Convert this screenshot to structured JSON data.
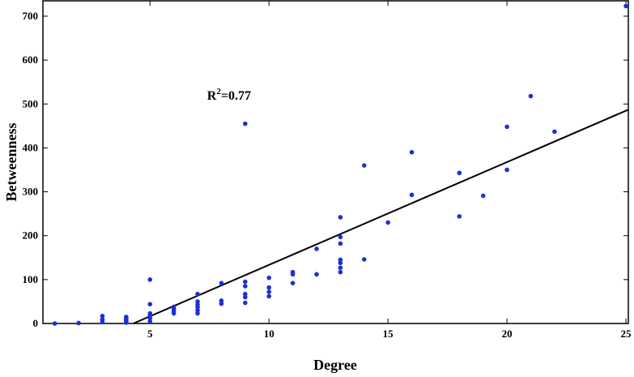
{
  "chart_data": {
    "type": "scatter",
    "title": "",
    "xlabel": "Degree",
    "ylabel": "Betweenness",
    "xlim": [
      0.5,
      25.1
    ],
    "ylim": [
      0,
      735
    ],
    "xticks": [
      5,
      10,
      15,
      20,
      25
    ],
    "yticks": [
      0,
      100,
      200,
      300,
      400,
      500,
      600,
      700
    ],
    "grid": false,
    "legend": "none",
    "annotation": {
      "base": "R",
      "sup": "2",
      "rest": "=0.77"
    },
    "annotation_pos_data": [
      7.4,
      510
    ],
    "point_color": "#1f2fd6",
    "line_color": "#000000",
    "points": [
      {
        "x": 1,
        "y": 0
      },
      {
        "x": 2,
        "y": 1
      },
      {
        "x": 3,
        "y": 3
      },
      {
        "x": 3,
        "y": 9
      },
      {
        "x": 3,
        "y": 17
      },
      {
        "x": 4,
        "y": 2
      },
      {
        "x": 4,
        "y": 5
      },
      {
        "x": 4,
        "y": 8
      },
      {
        "x": 4,
        "y": 11
      },
      {
        "x": 4,
        "y": 15
      },
      {
        "x": 5,
        "y": 5
      },
      {
        "x": 5,
        "y": 12
      },
      {
        "x": 5,
        "y": 18
      },
      {
        "x": 5,
        "y": 23
      },
      {
        "x": 5,
        "y": 44
      },
      {
        "x": 5,
        "y": 100
      },
      {
        "x": 6,
        "y": 23
      },
      {
        "x": 6,
        "y": 28
      },
      {
        "x": 6,
        "y": 33
      },
      {
        "x": 6,
        "y": 38
      },
      {
        "x": 7,
        "y": 23
      },
      {
        "x": 7,
        "y": 30
      },
      {
        "x": 7,
        "y": 37
      },
      {
        "x": 7,
        "y": 43
      },
      {
        "x": 7,
        "y": 50
      },
      {
        "x": 7,
        "y": 67
      },
      {
        "x": 8,
        "y": 45
      },
      {
        "x": 8,
        "y": 52
      },
      {
        "x": 8,
        "y": 92
      },
      {
        "x": 9,
        "y": 47
      },
      {
        "x": 9,
        "y": 60
      },
      {
        "x": 9,
        "y": 67
      },
      {
        "x": 9,
        "y": 85
      },
      {
        "x": 9,
        "y": 95
      },
      {
        "x": 9,
        "y": 455
      },
      {
        "x": 10,
        "y": 62
      },
      {
        "x": 10,
        "y": 72
      },
      {
        "x": 10,
        "y": 82
      },
      {
        "x": 10,
        "y": 104
      },
      {
        "x": 11,
        "y": 92
      },
      {
        "x": 11,
        "y": 112
      },
      {
        "x": 11,
        "y": 117
      },
      {
        "x": 12,
        "y": 112
      },
      {
        "x": 12,
        "y": 170
      },
      {
        "x": 13,
        "y": 117
      },
      {
        "x": 13,
        "y": 127
      },
      {
        "x": 13,
        "y": 138
      },
      {
        "x": 13,
        "y": 145
      },
      {
        "x": 13,
        "y": 182
      },
      {
        "x": 13,
        "y": 197
      },
      {
        "x": 13,
        "y": 242
      },
      {
        "x": 14,
        "y": 146
      },
      {
        "x": 14,
        "y": 360
      },
      {
        "x": 15,
        "y": 230
      },
      {
        "x": 16,
        "y": 293
      },
      {
        "x": 16,
        "y": 390
      },
      {
        "x": 18,
        "y": 244
      },
      {
        "x": 18,
        "y": 343
      },
      {
        "x": 19,
        "y": 291
      },
      {
        "x": 20,
        "y": 350
      },
      {
        "x": 20,
        "y": 448
      },
      {
        "x": 21,
        "y": 518
      },
      {
        "x": 22,
        "y": 437
      },
      {
        "x": 25,
        "y": 723
      }
    ],
    "fit_line": {
      "x": [
        4.3,
        25.1
      ],
      "y": [
        0,
        487
      ]
    }
  }
}
